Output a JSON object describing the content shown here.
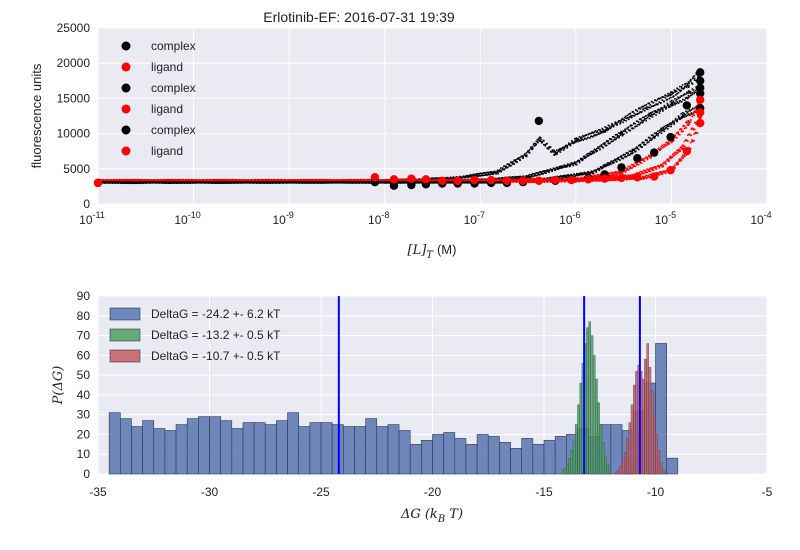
{
  "chart_data": [
    {
      "type": "scatter",
      "title": "Erlotinib-EF: 2016-07-31 19:39",
      "xlabel_math": "[L]",
      "xlabel_sub": "T",
      "xlabel_unit": "(M)",
      "ylabel": "fluorescence units",
      "xscale": "log",
      "xlim": [
        1e-11,
        0.0001
      ],
      "ylim": [
        0,
        25000
      ],
      "grid": true,
      "legend_placement": "upper-left",
      "yticks": [
        "0",
        "5000",
        "10000",
        "15000",
        "20000",
        "25000"
      ],
      "xticks_base": "10",
      "xticks_exp": [
        "-11",
        "-10",
        "-9",
        "-8",
        "-7",
        "-6",
        "-5",
        "-4"
      ],
      "colors": {
        "complex": "#000000",
        "ligand": "#ff0000"
      },
      "series": [
        {
          "name": "complex",
          "color": "#000000"
        },
        {
          "name": "ligand",
          "color": "#ff0000"
        },
        {
          "name": "complex",
          "color": "#000000"
        },
        {
          "name": "ligand",
          "color": "#ff0000"
        },
        {
          "name": "complex",
          "color": "#000000"
        },
        {
          "name": "ligand",
          "color": "#ff0000"
        }
      ],
      "points": {
        "complex": [
          [
            1e-11,
            3000
          ],
          [
            7.9e-09,
            3100
          ],
          [
            1.25e-08,
            2600
          ],
          [
            1.9e-08,
            2700
          ],
          [
            2.7e-08,
            2800
          ],
          [
            4e-08,
            2900
          ],
          [
            5.8e-08,
            2900
          ],
          [
            8.7e-08,
            2900
          ],
          [
            1.3e-07,
            3000
          ],
          [
            1.9e-07,
            3000
          ],
          [
            2.8e-07,
            3100
          ],
          [
            4.1e-07,
            11800
          ],
          [
            6.1e-07,
            3300
          ],
          [
            9e-07,
            3500
          ],
          [
            1.35e-06,
            3700
          ],
          [
            2e-06,
            4200
          ],
          [
            3e-06,
            5200
          ],
          [
            4.4e-06,
            6500
          ],
          [
            6.6e-06,
            7300
          ],
          [
            9.8e-06,
            9500
          ],
          [
            1.45e-05,
            14000
          ],
          [
            2e-05,
            18700
          ],
          [
            2e-05,
            17500
          ],
          [
            2e-05,
            16500
          ],
          [
            2e-05,
            15700
          ],
          [
            2e-05,
            13600
          ]
        ],
        "ligand": [
          [
            1e-11,
            3000
          ],
          [
            7.9e-09,
            3800
          ],
          [
            1.25e-08,
            3500
          ],
          [
            1.9e-08,
            3600
          ],
          [
            2.7e-08,
            3500
          ],
          [
            4e-08,
            3300
          ],
          [
            5.8e-08,
            3300
          ],
          [
            8.7e-08,
            3400
          ],
          [
            1.3e-07,
            3400
          ],
          [
            1.9e-07,
            3300
          ],
          [
            2.8e-07,
            3300
          ],
          [
            4.1e-07,
            3300
          ],
          [
            6.1e-07,
            3400
          ],
          [
            9e-07,
            3400
          ],
          [
            1.35e-06,
            3500
          ],
          [
            2e-06,
            3600
          ],
          [
            3e-06,
            3700
          ],
          [
            4.4e-06,
            3800
          ],
          [
            6.6e-06,
            3900
          ],
          [
            9.8e-06,
            4800
          ],
          [
            1.45e-05,
            7500
          ],
          [
            2e-05,
            14800
          ],
          [
            2e-05,
            13000
          ],
          [
            2e-05,
            11500
          ]
        ],
        "complex_curves": [
          [
            [
              1e-11,
              3200
            ],
            [
              1e-08,
              3250
            ],
            [
              5e-08,
              3600
            ],
            [
              1.5e-07,
              4500
            ],
            [
              3e-07,
              7000
            ],
            [
              4.2e-07,
              9200
            ],
            [
              6e-07,
              7200
            ],
            [
              1e-06,
              9000
            ],
            [
              2e-06,
              10500
            ],
            [
              5e-06,
              13500
            ],
            [
              1e-05,
              15500
            ],
            [
              1.5e-05,
              17000
            ],
            [
              2e-05,
              18700
            ]
          ],
          [
            [
              1e-11,
              3150
            ],
            [
              1e-08,
              3200
            ],
            [
              1e-07,
              3350
            ],
            [
              3e-07,
              3800
            ],
            [
              1e-06,
              5800
            ],
            [
              3e-06,
              10000
            ],
            [
              6e-06,
              12600
            ],
            [
              1e-05,
              14200
            ],
            [
              1.5e-05,
              15500
            ],
            [
              2e-05,
              16500
            ]
          ],
          [
            [
              1e-11,
              3100
            ],
            [
              1e-08,
              3150
            ],
            [
              1e-07,
              3200
            ],
            [
              5e-07,
              3500
            ],
            [
              1.5e-06,
              4500
            ],
            [
              4e-06,
              7500
            ],
            [
              8e-06,
              10500
            ],
            [
              1.3e-05,
              12500
            ],
            [
              2e-05,
              13700
            ]
          ]
        ],
        "ligand_curves": [
          [
            [
              1e-11,
              3300
            ],
            [
              1e-07,
              3300
            ],
            [
              1e-06,
              3500
            ],
            [
              3e-06,
              4500
            ],
            [
              6e-06,
              6800
            ],
            [
              1e-05,
              9000
            ],
            [
              1.5e-05,
              11500
            ],
            [
              2e-05,
              14800
            ]
          ],
          [
            [
              1e-11,
              3250
            ],
            [
              1e-07,
              3250
            ],
            [
              1e-06,
              3400
            ],
            [
              4e-06,
              4000
            ],
            [
              8e-06,
              5500
            ],
            [
              1.3e-05,
              8000
            ],
            [
              2e-05,
              12500
            ]
          ],
          [
            [
              1e-11,
              3200
            ],
            [
              1e-07,
              3200
            ],
            [
              1e-06,
              3300
            ],
            [
              5e-06,
              3700
            ],
            [
              1e-05,
              4800
            ],
            [
              1.5e-05,
              7500
            ],
            [
              2e-05,
              11500
            ]
          ]
        ]
      }
    },
    {
      "type": "bar",
      "xlabel_math": "ΔG (k",
      "xlabel_sub": "B",
      "xlabel_tail": " T)",
      "ylabel_math": "P(ΔG)",
      "xlim": [
        -35,
        -5
      ],
      "ylim": [
        0,
        90
      ],
      "grid": true,
      "legend_placement": "upper-left",
      "xticks": [
        "-35",
        "-30",
        "-25",
        "-20",
        "-15",
        "-10",
        "-5"
      ],
      "yticks": [
        "0",
        "10",
        "20",
        "30",
        "40",
        "50",
        "60",
        "70",
        "80",
        "90"
      ],
      "series": [
        {
          "name": "DeltaG = -24.2 +- 6.2 kT",
          "color": "#5874b0",
          "bin_start": -34.5,
          "bin_width": 0.5,
          "counts": [
            31,
            28,
            24,
            27,
            23,
            22,
            25,
            28,
            29,
            29,
            27,
            23,
            26,
            26,
            25,
            27,
            31,
            24,
            26,
            26,
            25,
            24,
            24,
            28,
            24,
            25,
            22,
            15,
            17,
            20,
            21,
            18,
            15,
            20,
            19,
            16,
            13,
            18,
            15,
            17,
            19,
            20,
            23,
            19,
            25,
            25,
            22,
            32,
            46,
            66,
            8
          ]
        },
        {
          "name": "DeltaG = -13.2 +- 0.5 kT",
          "color": "#4d9e5e",
          "bin_start": -14.2,
          "bin_width": 0.1,
          "counts": [
            2,
            3,
            5,
            8,
            12,
            17,
            25,
            35,
            46,
            56,
            66,
            74,
            77,
            70,
            60,
            48,
            36,
            25,
            16,
            9,
            5,
            2
          ]
        },
        {
          "name": "DeltaG = -10.7 +- 0.5 kT",
          "color": "#c45c63",
          "bin_start": -11.8,
          "bin_width": 0.1,
          "counts": [
            1,
            2,
            4,
            7,
            11,
            18,
            26,
            35,
            45,
            52,
            55,
            52,
            48,
            58,
            66,
            54,
            42,
            30,
            20,
            12,
            6,
            2
          ]
        }
      ],
      "vlines": [
        -24.2,
        -13.2,
        -10.7
      ],
      "vline_color": "#0000ff"
    }
  ]
}
